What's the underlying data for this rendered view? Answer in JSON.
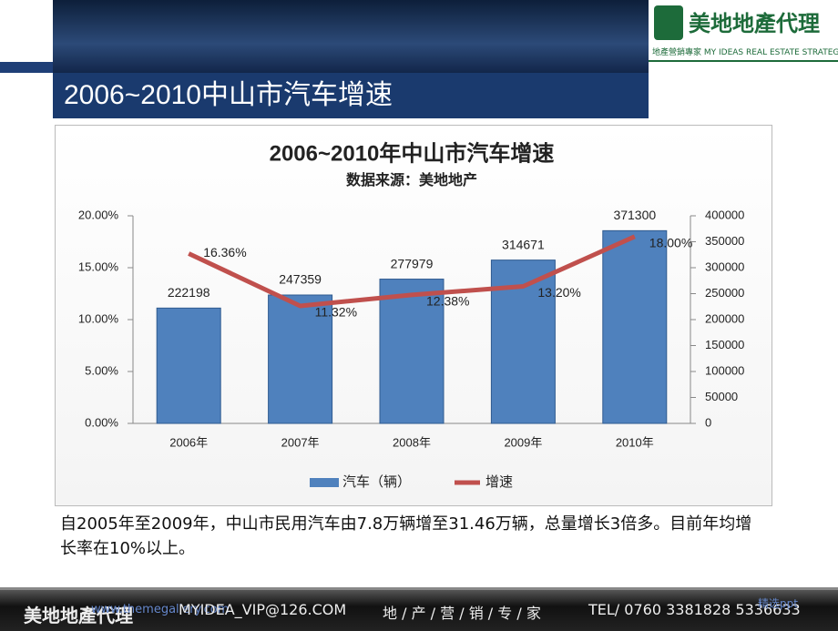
{
  "slide_title": "2006~2010中山市汽车增速",
  "logo": {
    "name": "美地地產代理",
    "tagline": "地產營銷專家 MY IDEAS REAL ESTATE STRATEGY"
  },
  "chart_data": {
    "type": "bar",
    "title": "2006~2010年中山市汽车增速",
    "subtitle": "数据来源：美地地产",
    "categories": [
      "2006年",
      "2007年",
      "2008年",
      "2009年",
      "2010年"
    ],
    "series": [
      {
        "name": "汽车（辆）",
        "color": "#4f81bd",
        "axis": "y2",
        "values": [
          222198,
          247359,
          277979,
          314671,
          371300
        ]
      },
      {
        "name": "增速",
        "color": "#c0504d",
        "type": "line",
        "values": [
          16.36,
          11.32,
          12.38,
          13.2,
          18.0
        ],
        "value_labels": [
          "16.36%",
          "11.32%",
          "12.38%",
          "13.20%",
          "18.00%"
        ]
      }
    ],
    "ylim": [
      0,
      20
    ],
    "yticks": [
      {
        "value": 0,
        "label": "0.00%"
      },
      {
        "value": 5,
        "label": "5.00%"
      },
      {
        "value": 10,
        "label": "10.00%"
      },
      {
        "value": 15,
        "label": "15.00%"
      },
      {
        "value": 20,
        "label": "20.00%"
      }
    ],
    "y2lim": [
      0,
      400000
    ],
    "y2ticks": [
      0,
      50000,
      100000,
      150000,
      200000,
      250000,
      300000,
      350000,
      400000
    ],
    "legend": "bottom"
  },
  "body_text": "自2005年至2009年，中山市民用汽车由7.8万辆增至31.46万辆，总量增长3倍多。目前年均增长率在10%以上。",
  "footer": {
    "brand": "美地地產代理",
    "website": "www.themegallery.com",
    "email": "MYIDEA_VIP@126.COM",
    "slogan": "地 / 产 / 营 / 销 / 专 / 家",
    "tel": "TEL/ 0760 3381828  5336633",
    "tag": "精选ppt"
  }
}
